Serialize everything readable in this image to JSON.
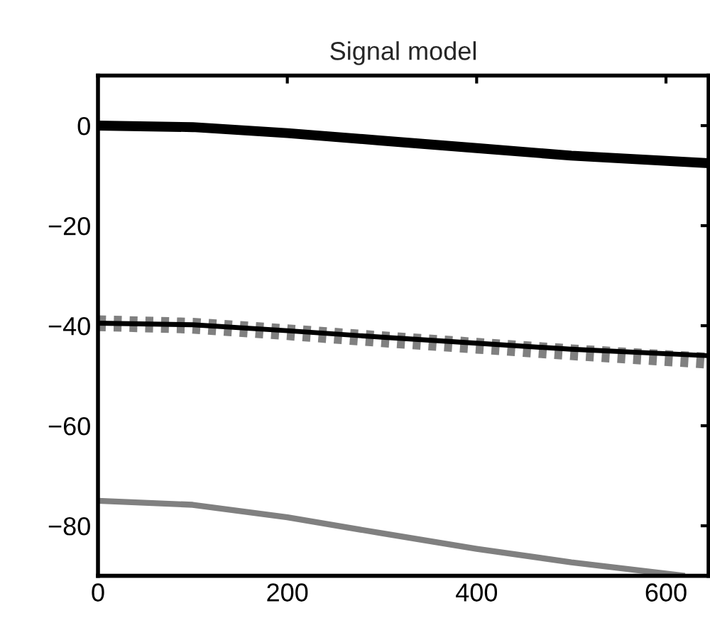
{
  "chart_data": {
    "type": "line",
    "title": "Signal model",
    "xlim": [
      0,
      645
    ],
    "ylim": [
      -90,
      10
    ],
    "xticks": [
      0,
      200,
      400,
      600
    ],
    "yticks": [
      -80,
      -60,
      -40,
      -20,
      0
    ],
    "grid": false,
    "legend": false,
    "marker": "none",
    "series": [
      {
        "color": "#000000",
        "line_style": "solid",
        "x": [
          0,
          100,
          200,
          300,
          400,
          500,
          645
        ],
        "values": [
          0,
          -0.3,
          -1.5,
          -3,
          -4.5,
          -6,
          -7.5
        ]
      },
      {
        "color": "#808080",
        "line_style": "dashed",
        "x": [
          0,
          100,
          200,
          300,
          400,
          500,
          645
        ],
        "values": [
          -39.5,
          -40,
          -41.3,
          -42.7,
          -44,
          -45.3,
          -47
        ]
      },
      {
        "color": "#000000",
        "line_style": "solid",
        "x": [
          0,
          100,
          200,
          300,
          400,
          500,
          645
        ],
        "values": [
          -39.5,
          -39.8,
          -41,
          -42.3,
          -43.5,
          -44.7,
          -46
        ]
      },
      {
        "color": "#808080",
        "line_style": "solid",
        "x": [
          0,
          100,
          200,
          300,
          400,
          500,
          620
        ],
        "values": [
          -75,
          -75.8,
          -78.3,
          -81.5,
          -84.6,
          -87.3,
          -90
        ]
      }
    ]
  }
}
